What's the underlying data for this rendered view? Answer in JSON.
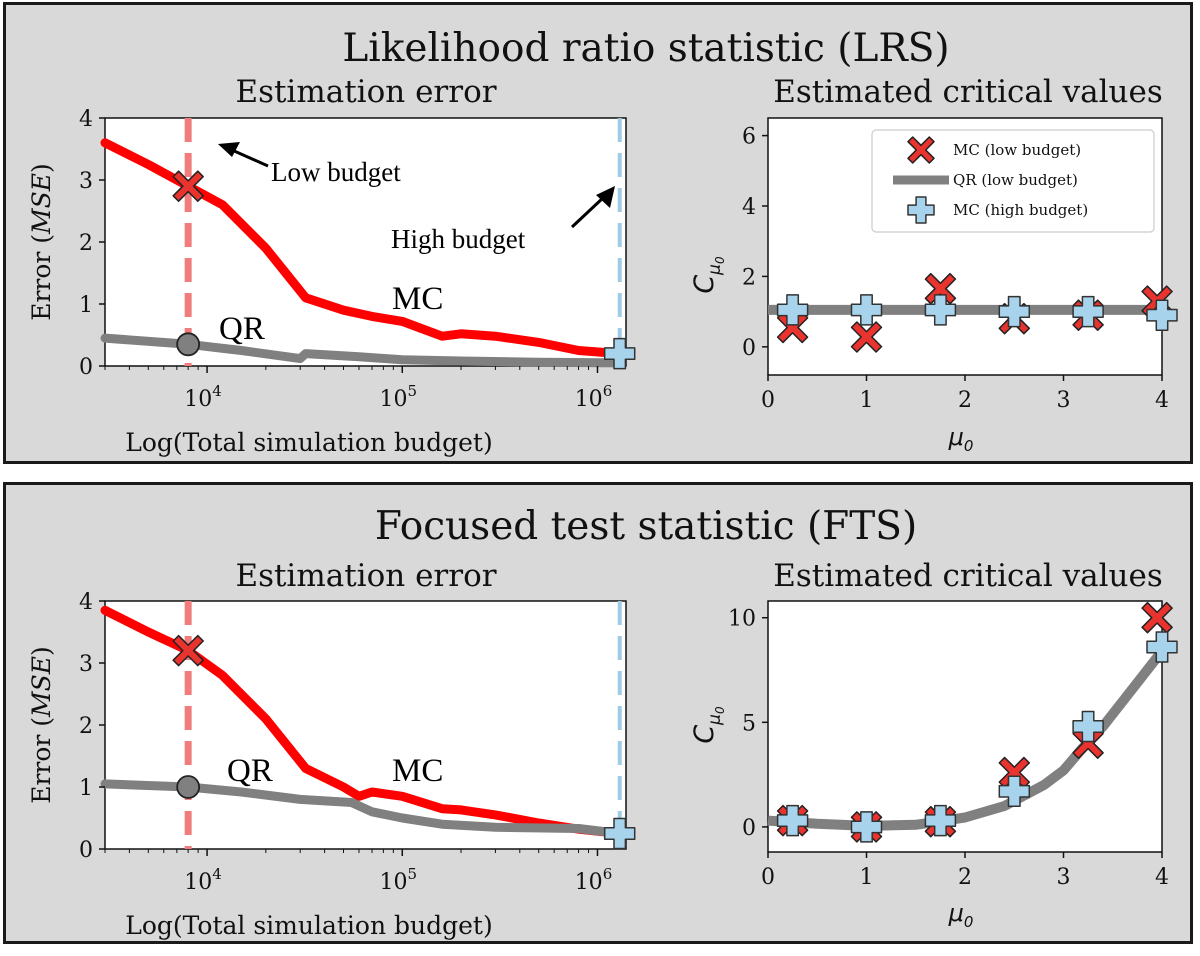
{
  "colors": {
    "mc": "#ff0000",
    "qr": "#808080",
    "low_budget_line": "#f07c7c",
    "high_budget_line": "#9fcbe4",
    "mc_marker": "#e8332f",
    "high_marker": "#a8d3ec",
    "panel_bg": "#d9d9d9"
  },
  "panels": [
    {
      "id": "lrs",
      "title": "Likelihood ratio statistic (LRS)",
      "left": {
        "subtitle": "Estimation error",
        "ylabel_prefix": "Error (",
        "ylabel_italic": "MSE",
        "ylabel_suffix": ")",
        "xlabel": "Log(Total simulation budget)",
        "yticks": [
          "0",
          "1",
          "2",
          "3",
          "4"
        ],
        "xticks": [
          {
            "base": "10",
            "exp": "4"
          },
          {
            "base": "10",
            "exp": "5"
          },
          {
            "base": "10",
            "exp": "6"
          }
        ],
        "annotations": {
          "low": "Low budget",
          "high": "High budget",
          "qr": "QR",
          "mc": "MC"
        }
      },
      "right": {
        "subtitle": "Estimated critical values",
        "ylabel": "C",
        "ylabel_sub": "μ",
        "ylabel_subsub": "0",
        "xlabel": "μ",
        "xlabel_sub": "0",
        "yticks": [
          "0",
          "2",
          "4",
          "6"
        ],
        "xticks": [
          "0",
          "1",
          "2",
          "3",
          "4"
        ],
        "legend": [
          "MC (low budget)",
          "QR (low budget)",
          "MC (high budget)"
        ]
      }
    },
    {
      "id": "fts",
      "title": "Focused test statistic (FTS)",
      "left": {
        "subtitle": "Estimation error",
        "ylabel_prefix": "Error (",
        "ylabel_italic": "MSE",
        "ylabel_suffix": ")",
        "xlabel": "Log(Total simulation budget)",
        "yticks": [
          "0",
          "1",
          "2",
          "3",
          "4"
        ],
        "xticks": [
          {
            "base": "10",
            "exp": "4"
          },
          {
            "base": "10",
            "exp": "5"
          },
          {
            "base": "10",
            "exp": "6"
          }
        ],
        "annotations": {
          "qr": "QR",
          "mc": "MC"
        }
      },
      "right": {
        "subtitle": "Estimated critical values",
        "ylabel": "C",
        "ylabel_sub": "μ",
        "ylabel_subsub": "0",
        "xlabel": "μ",
        "xlabel_sub": "0",
        "yticks": [
          "0",
          "5",
          "10"
        ],
        "xticks": [
          "0",
          "1",
          "2",
          "3",
          "4"
        ]
      }
    }
  ],
  "chart_data": [
    {
      "panel": "LRS",
      "type": "line",
      "title": "Estimation error",
      "xlabel": "Log(Total simulation budget)",
      "ylabel": "Error (MSE)",
      "xscale": "log",
      "xlim": [
        3000,
        1400000
      ],
      "ylim": [
        0,
        4
      ],
      "low_budget_x": 8000,
      "high_budget_x": 1300000,
      "series": [
        {
          "name": "MC",
          "x": [
            3000,
            5000,
            8000,
            12000,
            20000,
            32000,
            50000,
            70000,
            100000,
            160000,
            200000,
            300000,
            500000,
            800000,
            1300000
          ],
          "values": [
            3.6,
            3.25,
            2.9,
            2.6,
            1.9,
            1.1,
            0.9,
            0.8,
            0.72,
            0.48,
            0.52,
            0.48,
            0.38,
            0.25,
            0.2
          ]
        },
        {
          "name": "QR",
          "x": [
            3000,
            8000,
            15000,
            30000,
            32000,
            60000,
            100000,
            200000,
            500000,
            1300000
          ],
          "values": [
            0.45,
            0.35,
            0.25,
            0.12,
            0.2,
            0.15,
            0.1,
            0.08,
            0.06,
            0.05
          ]
        }
      ],
      "markers": [
        {
          "name": "MC (low budget)",
          "x": 8000,
          "y": 2.9
        },
        {
          "name": "QR (low budget)",
          "x": 8000,
          "y": 0.35
        },
        {
          "name": "MC (high budget)",
          "x": 1300000,
          "y": 0.2
        }
      ]
    },
    {
      "panel": "LRS",
      "type": "scatter",
      "title": "Estimated critical values",
      "xlabel": "μ0",
      "ylabel": "Cμ0",
      "xlim": [
        0,
        4
      ],
      "ylim": [
        -0.8,
        6.5
      ],
      "series": [
        {
          "name": "MC (low budget)",
          "x": [
            0.25,
            1.0,
            1.75,
            2.5,
            3.25,
            3.95
          ],
          "values": [
            0.55,
            0.28,
            1.65,
            0.8,
            0.9,
            1.3
          ]
        },
        {
          "name": "QR (low budget)",
          "x": [
            0.0,
            4.0
          ],
          "values": [
            1.05,
            1.05
          ]
        },
        {
          "name": "MC (high budget)",
          "x": [
            0.25,
            1.0,
            1.75,
            2.5,
            3.25,
            4.0
          ],
          "values": [
            1.05,
            1.05,
            1.05,
            1.0,
            1.0,
            0.9
          ]
        }
      ]
    },
    {
      "panel": "FTS",
      "type": "line",
      "title": "Estimation error",
      "xlabel": "Log(Total simulation budget)",
      "ylabel": "Error (MSE)",
      "xscale": "log",
      "xlim": [
        3000,
        1400000
      ],
      "ylim": [
        0,
        4
      ],
      "low_budget_x": 8000,
      "high_budget_x": 1300000,
      "series": [
        {
          "name": "MC",
          "x": [
            3000,
            5000,
            8000,
            12000,
            20000,
            32000,
            50000,
            60000,
            70000,
            100000,
            160000,
            200000,
            300000,
            500000,
            800000,
            1300000
          ],
          "values": [
            3.85,
            3.5,
            3.2,
            2.8,
            2.1,
            1.3,
            1.0,
            0.85,
            0.92,
            0.85,
            0.65,
            0.63,
            0.55,
            0.42,
            0.32,
            0.25
          ]
        },
        {
          "name": "QR",
          "x": [
            3000,
            8000,
            15000,
            30000,
            55000,
            70000,
            100000,
            160000,
            300000,
            800000,
            1300000
          ],
          "values": [
            1.05,
            1.0,
            0.92,
            0.8,
            0.75,
            0.6,
            0.5,
            0.4,
            0.35,
            0.33,
            0.25
          ]
        }
      ],
      "markers": [
        {
          "name": "MC (low budget)",
          "x": 8000,
          "y": 3.2
        },
        {
          "name": "QR (low budget)",
          "x": 8000,
          "y": 1.0
        },
        {
          "name": "MC (high budget)",
          "x": 1300000,
          "y": 0.25
        }
      ]
    },
    {
      "panel": "FTS",
      "type": "scatter",
      "title": "Estimated critical values",
      "xlabel": "μ0",
      "ylabel": "Cμ0",
      "xlim": [
        0,
        4
      ],
      "ylim": [
        -1.2,
        10.8
      ],
      "series": [
        {
          "name": "MC (low budget)",
          "x": [
            0.25,
            1.0,
            1.75,
            2.5,
            3.25,
            3.95
          ],
          "values": [
            0.3,
            0.0,
            0.25,
            2.6,
            4.0,
            10.0
          ]
        },
        {
          "name": "QR (low budget)",
          "x": [
            0.0,
            0.5,
            1.0,
            1.5,
            2.0,
            2.4,
            2.8,
            3.0,
            3.2,
            3.4,
            3.6,
            3.8,
            4.0
          ],
          "values": [
            0.3,
            0.15,
            0.05,
            0.1,
            0.45,
            1.0,
            2.0,
            2.7,
            3.8,
            4.8,
            6.0,
            7.2,
            8.4
          ]
        },
        {
          "name": "MC (high budget)",
          "x": [
            0.25,
            1.0,
            1.75,
            2.5,
            3.25,
            4.0
          ],
          "values": [
            0.3,
            0.0,
            0.3,
            1.7,
            4.8,
            8.6
          ]
        }
      ]
    }
  ]
}
